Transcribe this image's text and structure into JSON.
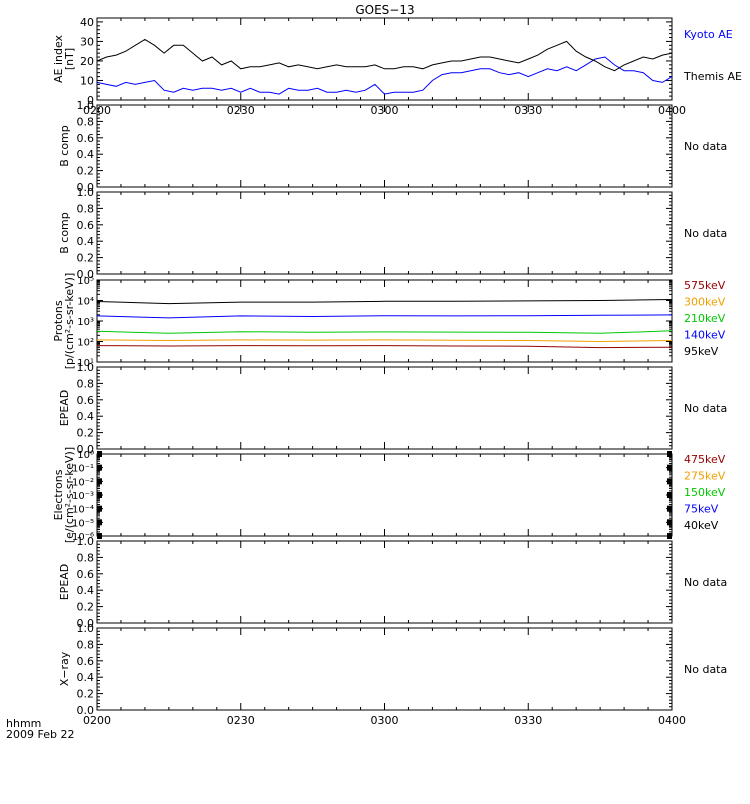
{
  "figure": {
    "title": "GOES−13",
    "date_label_1": "hhmm",
    "date_label_2": "2009 Feb 22",
    "no_data": "No data"
  },
  "colors": {
    "black": "#000000",
    "blue": "#0000ff",
    "green": "#00c800",
    "orange": "#f0a000",
    "red": "#960000"
  },
  "chart_data": [
    {
      "type": "line",
      "ylabel_1": "AE index",
      "ylabel_2": "[nT]",
      "ylim": [
        0,
        42
      ],
      "yticks": [
        {
          "v": 0,
          "label": "0"
        },
        {
          "v": 10,
          "label": "10"
        },
        {
          "v": 20,
          "label": "20"
        },
        {
          "v": 30,
          "label": "30"
        },
        {
          "v": 40,
          "label": "40"
        }
      ],
      "xlim": [
        0,
        120
      ],
      "xticks": [
        {
          "v": 0,
          "label": "0200"
        },
        {
          "v": 30,
          "label": "0230"
        },
        {
          "v": 60,
          "label": "0300"
        },
        {
          "v": 90,
          "label": "0330"
        },
        {
          "v": 120,
          "label": "0400"
        }
      ],
      "log": false,
      "series": [
        {
          "name": "Kyoto AE",
          "color": "#0000ff",
          "x": [
            0,
            2,
            4,
            6,
            8,
            10,
            12,
            14,
            16,
            18,
            20,
            22,
            24,
            26,
            28,
            30,
            32,
            34,
            36,
            38,
            40,
            42,
            44,
            46,
            48,
            50,
            52,
            54,
            56,
            58,
            60,
            62,
            64,
            66,
            68,
            70,
            72,
            74,
            76,
            78,
            80,
            82,
            84,
            86,
            88,
            90,
            92,
            94,
            96,
            98,
            100,
            102,
            104,
            106,
            108,
            110,
            112,
            114,
            116,
            118,
            120
          ],
          "y": [
            9,
            8,
            7,
            9,
            8,
            9,
            10,
            5,
            4,
            6,
            5,
            6,
            6,
            5,
            6,
            4,
            6,
            4,
            4,
            3,
            6,
            5,
            5,
            6,
            4,
            4,
            5,
            4,
            5,
            8,
            3,
            4,
            4,
            4,
            5,
            10,
            13,
            14,
            14,
            15,
            16,
            16,
            14,
            13,
            14,
            12,
            14,
            16,
            15,
            17,
            15,
            18,
            21,
            22,
            18,
            15,
            15,
            14,
            10,
            9,
            12
          ]
        },
        {
          "name": "Themis AE",
          "color": "#000000",
          "x": [
            0,
            2,
            4,
            6,
            8,
            10,
            12,
            14,
            16,
            18,
            20,
            22,
            24,
            26,
            28,
            30,
            32,
            34,
            36,
            38,
            40,
            42,
            44,
            46,
            48,
            50,
            52,
            54,
            56,
            58,
            60,
            62,
            64,
            66,
            68,
            70,
            72,
            74,
            76,
            78,
            80,
            82,
            84,
            86,
            88,
            90,
            92,
            94,
            96,
            98,
            100,
            102,
            104,
            106,
            108,
            110,
            112,
            114,
            116,
            118,
            120
          ],
          "y": [
            20,
            22,
            23,
            25,
            28,
            31,
            28,
            24,
            28,
            28,
            24,
            20,
            22,
            18,
            20,
            16,
            17,
            17,
            18,
            19,
            17,
            18,
            17,
            16,
            17,
            18,
            17,
            17,
            17,
            18,
            16,
            16,
            17,
            17,
            16,
            18,
            19,
            20,
            20,
            21,
            22,
            22,
            21,
            20,
            19,
            21,
            23,
            26,
            28,
            30,
            25,
            22,
            20,
            17,
            15,
            18,
            20,
            22,
            21,
            23,
            24
          ]
        }
      ]
    },
    {
      "type": "line",
      "ylabel_1": "B comp",
      "ylabel_2": "",
      "ylim": [
        0,
        1
      ],
      "yticks": [
        {
          "v": 0,
          "label": "0.0"
        },
        {
          "v": 0.2,
          "label": "0.2"
        },
        {
          "v": 0.4,
          "label": "0.4"
        },
        {
          "v": 0.6,
          "label": "0.6"
        },
        {
          "v": 0.8,
          "label": "0.8"
        },
        {
          "v": 1,
          "label": "1.0"
        }
      ],
      "xlim": [
        0,
        120
      ],
      "xticks": [
        {
          "v": 0,
          "label": ""
        },
        {
          "v": 30,
          "label": ""
        },
        {
          "v": 60,
          "label": ""
        },
        {
          "v": 90,
          "label": ""
        },
        {
          "v": 120,
          "label": ""
        }
      ],
      "log": false,
      "series": [],
      "no_data": true
    },
    {
      "type": "line",
      "ylabel_1": "B comp",
      "ylabel_2": "",
      "ylim": [
        0,
        1
      ],
      "yticks": [
        {
          "v": 0,
          "label": "0.0"
        },
        {
          "v": 0.2,
          "label": "0.2"
        },
        {
          "v": 0.4,
          "label": "0.4"
        },
        {
          "v": 0.6,
          "label": "0.6"
        },
        {
          "v": 0.8,
          "label": "0.8"
        },
        {
          "v": 1,
          "label": "1.0"
        }
      ],
      "xlim": [
        0,
        120
      ],
      "xticks": [
        {
          "v": 0,
          "label": ""
        },
        {
          "v": 30,
          "label": ""
        },
        {
          "v": 60,
          "label": ""
        },
        {
          "v": 90,
          "label": ""
        },
        {
          "v": 120,
          "label": ""
        }
      ],
      "log": false,
      "series": [],
      "no_data": true
    },
    {
      "type": "line",
      "ylabel_1": "Protons",
      "ylabel_2": "[p/(cm²-s-sr-keV)]",
      "log": true,
      "ylim": [
        1,
        5
      ],
      "yticks": [
        {
          "v": 1,
          "label": "10¹"
        },
        {
          "v": 2,
          "label": "10²"
        },
        {
          "v": 3,
          "label": "10³"
        },
        {
          "v": 4,
          "label": "10⁴"
        },
        {
          "v": 5,
          "label": "10⁵"
        }
      ],
      "xlim": [
        0,
        120
      ],
      "xticks": [
        {
          "v": 0,
          "label": ""
        },
        {
          "v": 30,
          "label": ""
        },
        {
          "v": 60,
          "label": ""
        },
        {
          "v": 90,
          "label": ""
        },
        {
          "v": 120,
          "label": ""
        }
      ],
      "series": [
        {
          "name": "575keV",
          "color": "#960000",
          "x": [
            0,
            15,
            30,
            45,
            60,
            75,
            90,
            105,
            120
          ],
          "y": [
            1.8,
            1.78,
            1.8,
            1.79,
            1.8,
            1.78,
            1.77,
            1.7,
            1.72
          ]
        },
        {
          "name": "300keV",
          "color": "#f0a000",
          "x": [
            0,
            15,
            30,
            45,
            60,
            75,
            90,
            105,
            120
          ],
          "y": [
            2.08,
            2.05,
            2.08,
            2.07,
            2.08,
            2.06,
            2.05,
            2.0,
            2.05
          ]
        },
        {
          "name": "210keV",
          "color": "#00c800",
          "x": [
            0,
            15,
            30,
            45,
            60,
            75,
            90,
            105,
            120
          ],
          "y": [
            2.5,
            2.4,
            2.48,
            2.45,
            2.47,
            2.46,
            2.45,
            2.4,
            2.52
          ]
        },
        {
          "name": "140keV",
          "color": "#0000ff",
          "x": [
            0,
            15,
            30,
            45,
            60,
            75,
            90,
            105,
            120
          ],
          "y": [
            3.25,
            3.15,
            3.25,
            3.22,
            3.26,
            3.25,
            3.26,
            3.28,
            3.3
          ]
        },
        {
          "name": "95keV",
          "color": "#000000",
          "x": [
            0,
            15,
            30,
            45,
            60,
            75,
            90,
            105,
            120
          ],
          "y": [
            3.95,
            3.85,
            3.92,
            3.92,
            3.96,
            3.96,
            3.98,
            4.0,
            4.05
          ]
        }
      ]
    },
    {
      "type": "line",
      "ylabel_1": "EPEAD",
      "ylabel_2": "",
      "ylim": [
        0,
        1
      ],
      "yticks": [
        {
          "v": 0,
          "label": "0.0"
        },
        {
          "v": 0.2,
          "label": "0.2"
        },
        {
          "v": 0.4,
          "label": "0.4"
        },
        {
          "v": 0.6,
          "label": "0.6"
        },
        {
          "v": 0.8,
          "label": "0.8"
        },
        {
          "v": 1,
          "label": "1.0"
        }
      ],
      "xlim": [
        0,
        120
      ],
      "xticks": [
        {
          "v": 0,
          "label": ""
        },
        {
          "v": 30,
          "label": ""
        },
        {
          "v": 60,
          "label": ""
        },
        {
          "v": 90,
          "label": ""
        },
        {
          "v": 120,
          "label": ""
        }
      ],
      "log": false,
      "series": [],
      "no_data": true
    },
    {
      "type": "line",
      "ylabel_1": "Electrons",
      "ylabel_2": "[e/(cm²-s-sr-keV)]",
      "log": true,
      "ylim": [
        -6,
        0
      ],
      "yticks": [
        {
          "v": -6,
          "label": "10⁻⁶"
        },
        {
          "v": -5,
          "label": "10⁻⁵"
        },
        {
          "v": -4,
          "label": "10⁻⁴"
        },
        {
          "v": -3,
          "label": "10⁻³"
        },
        {
          "v": -2,
          "label": "10⁻²"
        },
        {
          "v": -1,
          "label": "10⁻¹"
        },
        {
          "v": 0,
          "label": "10⁰"
        }
      ],
      "xlim": [
        0,
        120
      ],
      "xticks": [
        {
          "v": 0,
          "label": ""
        },
        {
          "v": 30,
          "label": ""
        },
        {
          "v": 60,
          "label": ""
        },
        {
          "v": 90,
          "label": ""
        },
        {
          "v": 120,
          "label": ""
        }
      ],
      "series": [
        {
          "name": "475keV",
          "color": "#960000",
          "x": [],
          "y": []
        },
        {
          "name": "275keV",
          "color": "#f0a000",
          "x": [],
          "y": []
        },
        {
          "name": "150keV",
          "color": "#00c800",
          "x": [],
          "y": []
        },
        {
          "name": "75keV",
          "color": "#0000ff",
          "x": [],
          "y": []
        },
        {
          "name": "40keV",
          "color": "#000000",
          "x": [],
          "y": []
        }
      ]
    },
    {
      "type": "line",
      "ylabel_1": "EPEAD",
      "ylabel_2": "",
      "ylim": [
        0,
        1
      ],
      "yticks": [
        {
          "v": 0,
          "label": "0.0"
        },
        {
          "v": 0.2,
          "label": "0.2"
        },
        {
          "v": 0.4,
          "label": "0.4"
        },
        {
          "v": 0.6,
          "label": "0.6"
        },
        {
          "v": 0.8,
          "label": "0.8"
        },
        {
          "v": 1,
          "label": "1.0"
        }
      ],
      "xlim": [
        0,
        120
      ],
      "xticks": [
        {
          "v": 0,
          "label": ""
        },
        {
          "v": 30,
          "label": ""
        },
        {
          "v": 60,
          "label": ""
        },
        {
          "v": 90,
          "label": ""
        },
        {
          "v": 120,
          "label": ""
        }
      ],
      "log": false,
      "series": [],
      "no_data": true
    },
    {
      "type": "line",
      "ylabel_1": "X−ray",
      "ylabel_2": "",
      "ylim": [
        0,
        1
      ],
      "yticks": [
        {
          "v": 0,
          "label": "0.0"
        },
        {
          "v": 0.2,
          "label": "0.2"
        },
        {
          "v": 0.4,
          "label": "0.4"
        },
        {
          "v": 0.6,
          "label": "0.6"
        },
        {
          "v": 0.8,
          "label": "0.8"
        },
        {
          "v": 1,
          "label": "1.0"
        }
      ],
      "xlim": [
        0,
        120
      ],
      "xticks": [
        {
          "v": 0,
          "label": "0200"
        },
        {
          "v": 30,
          "label": "0230"
        },
        {
          "v": 60,
          "label": "0300"
        },
        {
          "v": 90,
          "label": "0330"
        },
        {
          "v": 120,
          "label": "0400"
        }
      ],
      "log": false,
      "series": [],
      "no_data": true
    }
  ]
}
